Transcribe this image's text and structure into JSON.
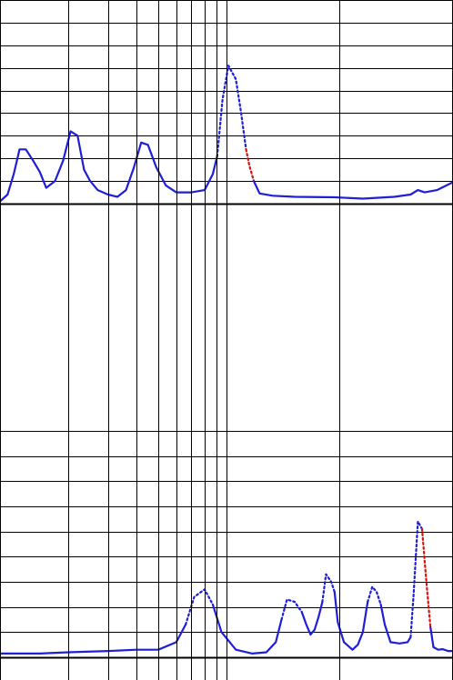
{
  "chart_data": [
    {
      "type": "line",
      "title": "",
      "xlabel": "",
      "ylabel": "",
      "x_scale": "log",
      "xlim": [
        1,
        100
      ],
      "ylim": [
        0,
        9
      ],
      "grid": true,
      "colors": {
        "solid": "#1f1fd6",
        "dotted": "#1f1fd6",
        "highlight": "#dd1111"
      },
      "series": [
        {
          "style": "solid",
          "points": [
            [
              1.0,
              0.1
            ],
            [
              1.08,
              0.4
            ],
            [
              1.15,
              1.3
            ],
            [
              1.22,
              2.4
            ],
            [
              1.3,
              2.4
            ],
            [
              1.4,
              1.9
            ],
            [
              1.5,
              1.4
            ],
            [
              1.6,
              0.7
            ],
            [
              1.75,
              1.0
            ],
            [
              1.9,
              1.9
            ],
            [
              2.05,
              3.2
            ],
            [
              2.2,
              3.0
            ],
            [
              2.35,
              1.5
            ],
            [
              2.5,
              1.0
            ],
            [
              2.7,
              0.6
            ],
            [
              3.0,
              0.4
            ],
            [
              3.3,
              0.3
            ],
            [
              3.6,
              0.6
            ],
            [
              3.9,
              1.6
            ],
            [
              4.2,
              2.7
            ],
            [
              4.5,
              2.6
            ],
            [
              4.9,
              1.6
            ],
            [
              5.4,
              0.8
            ],
            [
              6.0,
              0.5
            ],
            [
              7.0,
              0.5
            ],
            [
              8.0,
              0.6
            ],
            [
              8.7,
              1.3
            ],
            [
              9.1,
              2.1
            ]
          ]
        },
        {
          "style": "dotted",
          "points": [
            [
              9.1,
              2.1
            ],
            [
              9.6,
              4.6
            ],
            [
              10.2,
              6.1
            ],
            [
              11.0,
              5.5
            ],
            [
              11.6,
              4.0
            ],
            [
              12.2,
              2.4
            ]
          ]
        },
        {
          "style": "dotted-highlight",
          "points": [
            [
              12.2,
              2.4
            ],
            [
              12.6,
              1.7
            ],
            [
              13.2,
              1.0
            ]
          ]
        },
        {
          "style": "solid",
          "points": [
            [
              13.2,
              1.0
            ],
            [
              14.0,
              0.45
            ],
            [
              16.0,
              0.35
            ],
            [
              20.0,
              0.3
            ],
            [
              30.0,
              0.28
            ],
            [
              40.0,
              0.22
            ],
            [
              55.0,
              0.3
            ],
            [
              65.0,
              0.4
            ],
            [
              70.0,
              0.6
            ],
            [
              75.0,
              0.5
            ],
            [
              85.0,
              0.6
            ],
            [
              100.0,
              0.95
            ]
          ]
        }
      ]
    },
    {
      "type": "line",
      "title": "",
      "xlabel": "",
      "ylabel": "",
      "x_scale": "log",
      "xlim": [
        1,
        100
      ],
      "ylim": [
        0,
        9
      ],
      "grid": true,
      "colors": {
        "solid": "#1f1fd6",
        "dotted": "#1f1fd6",
        "highlight": "#dd1111"
      },
      "series": [
        {
          "style": "solid",
          "points": [
            [
              1.0,
              0.15
            ],
            [
              1.5,
              0.15
            ],
            [
              2.0,
              0.2
            ],
            [
              3.0,
              0.25
            ],
            [
              4.0,
              0.3
            ],
            [
              5.0,
              0.3
            ],
            [
              6.0,
              0.6
            ],
            [
              6.6,
              1.3
            ]
          ]
        },
        {
          "style": "dotted",
          "points": [
            [
              6.6,
              1.3
            ],
            [
              7.2,
              2.4
            ],
            [
              8.0,
              2.7
            ],
            [
              8.7,
              2.1
            ]
          ]
        },
        {
          "style": "solid",
          "points": [
            [
              8.7,
              2.1
            ],
            [
              9.5,
              1.0
            ],
            [
              11.0,
              0.3
            ],
            [
              13.0,
              0.15
            ],
            [
              15.0,
              0.2
            ],
            [
              16.5,
              0.6
            ],
            [
              17.5,
              1.5
            ]
          ]
        },
        {
          "style": "dotted",
          "points": [
            [
              17.5,
              1.5
            ],
            [
              18.5,
              2.3
            ],
            [
              20.0,
              2.2
            ],
            [
              21.5,
              1.8
            ]
          ]
        },
        {
          "style": "solid",
          "points": [
            [
              21.5,
              1.8
            ],
            [
              22.5,
              1.3
            ],
            [
              23.5,
              0.9
            ],
            [
              24.5,
              1.1
            ],
            [
              25.5,
              1.6
            ],
            [
              26.5,
              2.2
            ]
          ]
        },
        {
          "style": "dotted",
          "points": [
            [
              26.5,
              2.2
            ],
            [
              27.5,
              3.3
            ],
            [
              29.0,
              3.0
            ],
            [
              30.0,
              2.6
            ]
          ]
        },
        {
          "style": "solid",
          "points": [
            [
              30.0,
              2.6
            ],
            [
              31.0,
              1.4
            ],
            [
              33.0,
              0.6
            ],
            [
              36.0,
              0.3
            ],
            [
              38.0,
              0.5
            ],
            [
              40.0,
              1.0
            ],
            [
              42.0,
              2.2
            ]
          ]
        },
        {
          "style": "dotted",
          "points": [
            [
              42.0,
              2.2
            ],
            [
              44.0,
              2.8
            ],
            [
              46.0,
              2.6
            ],
            [
              48.0,
              2.1
            ]
          ]
        },
        {
          "style": "solid",
          "points": [
            [
              48.0,
              2.1
            ],
            [
              50.0,
              1.3
            ],
            [
              53.0,
              0.6
            ],
            [
              58.0,
              0.55
            ],
            [
              63.0,
              0.6
            ],
            [
              65.0,
              0.8
            ]
          ]
        },
        {
          "style": "dotted",
          "points": [
            [
              65.0,
              0.8
            ],
            [
              67.0,
              2.5
            ],
            [
              70.0,
              5.4
            ],
            [
              73.0,
              5.1
            ]
          ]
        },
        {
          "style": "dotted-highlight",
          "points": [
            [
              73.0,
              5.1
            ],
            [
              75.0,
              3.8
            ],
            [
              77.0,
              2.6
            ],
            [
              79.5,
              1.2
            ]
          ]
        },
        {
          "style": "solid",
          "points": [
            [
              79.5,
              1.2
            ],
            [
              82.0,
              0.4
            ],
            [
              86.0,
              0.3
            ],
            [
              90.0,
              0.32
            ],
            [
              95.0,
              0.25
            ],
            [
              100.0,
              0.25
            ]
          ]
        }
      ]
    }
  ]
}
